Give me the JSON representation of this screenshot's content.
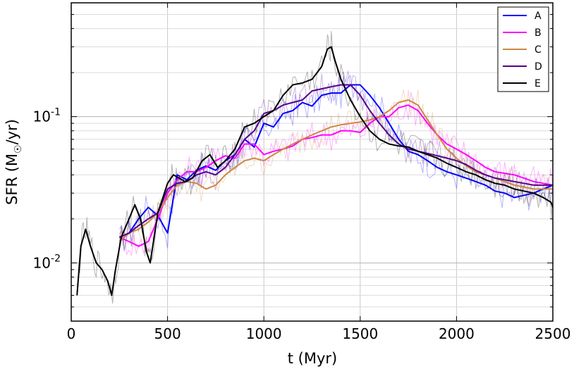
{
  "chart_data": {
    "type": "line",
    "title": "",
    "xlabel": "t (Myr)",
    "ylabel_main": "SFR (M",
    "ylabel_sub": "☉",
    "ylabel_tail": "/yr)",
    "xlim": [
      0,
      2500
    ],
    "ylim": [
      0.004,
      0.6
    ],
    "yscale": "log",
    "grid": true,
    "legend_position": "top-right",
    "x_ticks": [
      0,
      500,
      1000,
      1500,
      2000,
      2500
    ],
    "x_tick_labels": [
      "0",
      "500",
      "1000",
      "1500",
      "2000",
      "2500"
    ],
    "y_major_ticks": [
      0.01,
      0.1
    ],
    "y_tick_labels": [
      {
        "base": "10",
        "exp": "-2"
      },
      {
        "base": "10",
        "exp": "-1"
      }
    ],
    "y_minor_ticks": [
      0.005,
      0.006,
      0.007,
      0.008,
      0.009,
      0.02,
      0.03,
      0.04,
      0.05,
      0.06,
      0.07,
      0.08,
      0.09,
      0.2,
      0.3,
      0.4,
      0.5,
      0.6
    ],
    "series": [
      {
        "name": "A",
        "color": "#0000ff",
        "x": [
          250,
          300,
          350,
          400,
          450,
          500,
          550,
          600,
          650,
          700,
          750,
          800,
          850,
          900,
          950,
          1000,
          1050,
          1100,
          1150,
          1200,
          1250,
          1300,
          1350,
          1400,
          1450,
          1500,
          1550,
          1600,
          1650,
          1700,
          1750,
          1800,
          1850,
          1900,
          1950,
          2000,
          2050,
          2100,
          2150,
          2200,
          2250,
          2300,
          2350,
          2400,
          2450,
          2500
        ],
        "y": [
          0.014,
          0.016,
          0.02,
          0.024,
          0.021,
          0.016,
          0.04,
          0.037,
          0.043,
          0.046,
          0.043,
          0.05,
          0.055,
          0.07,
          0.062,
          0.09,
          0.085,
          0.105,
          0.11,
          0.125,
          0.118,
          0.14,
          0.145,
          0.145,
          0.165,
          0.165,
          0.14,
          0.115,
          0.09,
          0.07,
          0.058,
          0.055,
          0.05,
          0.045,
          0.042,
          0.04,
          0.038,
          0.036,
          0.034,
          0.031,
          0.03,
          0.028,
          0.029,
          0.03,
          0.032,
          0.034
        ]
      },
      {
        "name": "B",
        "color": "#ff00ff",
        "x": [
          250,
          300,
          350,
          400,
          450,
          500,
          550,
          600,
          650,
          700,
          750,
          800,
          850,
          900,
          950,
          1000,
          1050,
          1100,
          1150,
          1200,
          1250,
          1300,
          1350,
          1400,
          1450,
          1500,
          1550,
          1600,
          1650,
          1700,
          1750,
          1800,
          1850,
          1900,
          1950,
          2000,
          2050,
          2100,
          2150,
          2200,
          2250,
          2300,
          2350,
          2400,
          2450,
          2500
        ],
        "y": [
          0.015,
          0.014,
          0.013,
          0.014,
          0.02,
          0.03,
          0.037,
          0.042,
          0.042,
          0.045,
          0.05,
          0.054,
          0.052,
          0.065,
          0.065,
          0.055,
          0.058,
          0.06,
          0.063,
          0.07,
          0.072,
          0.075,
          0.075,
          0.08,
          0.08,
          0.078,
          0.09,
          0.1,
          0.1,
          0.115,
          0.12,
          0.11,
          0.09,
          0.075,
          0.065,
          0.06,
          0.055,
          0.05,
          0.045,
          0.042,
          0.041,
          0.04,
          0.038,
          0.036,
          0.035,
          0.034
        ]
      },
      {
        "name": "C",
        "color": "#cc8844",
        "x": [
          250,
          300,
          350,
          400,
          450,
          500,
          550,
          600,
          650,
          700,
          750,
          800,
          850,
          900,
          950,
          1000,
          1050,
          1100,
          1150,
          1200,
          1250,
          1300,
          1350,
          1400,
          1450,
          1500,
          1550,
          1600,
          1650,
          1700,
          1750,
          1800,
          1850,
          1900,
          1950,
          2000,
          2050,
          2100,
          2150,
          2200,
          2250,
          2300,
          2350,
          2400,
          2450,
          2500
        ],
        "y": [
          0.014,
          0.016,
          0.017,
          0.019,
          0.022,
          0.028,
          0.034,
          0.036,
          0.035,
          0.032,
          0.034,
          0.04,
          0.045,
          0.05,
          0.052,
          0.05,
          0.055,
          0.06,
          0.065,
          0.07,
          0.075,
          0.08,
          0.085,
          0.088,
          0.09,
          0.092,
          0.095,
          0.1,
          0.11,
          0.125,
          0.13,
          0.12,
          0.095,
          0.075,
          0.06,
          0.052,
          0.046,
          0.042,
          0.04,
          0.038,
          0.036,
          0.034,
          0.033,
          0.032,
          0.032,
          0.032
        ]
      },
      {
        "name": "D",
        "color": "#550088",
        "x": [
          250,
          300,
          350,
          400,
          450,
          500,
          550,
          600,
          650,
          700,
          750,
          800,
          850,
          900,
          950,
          1000,
          1050,
          1100,
          1150,
          1200,
          1250,
          1300,
          1350,
          1400,
          1450,
          1500,
          1550,
          1600,
          1650,
          1700,
          1750,
          1800,
          1850,
          1900,
          1950,
          2000,
          2050,
          2100,
          2150,
          2200,
          2250,
          2300,
          2350,
          2400,
          2450,
          2500
        ],
        "y": [
          0.015,
          0.016,
          0.018,
          0.02,
          0.022,
          0.032,
          0.035,
          0.036,
          0.04,
          0.042,
          0.04,
          0.045,
          0.055,
          0.07,
          0.08,
          0.105,
          0.11,
          0.12,
          0.125,
          0.13,
          0.15,
          0.155,
          0.16,
          0.165,
          0.165,
          0.14,
          0.11,
          0.09,
          0.075,
          0.065,
          0.06,
          0.058,
          0.056,
          0.054,
          0.052,
          0.05,
          0.047,
          0.043,
          0.04,
          0.038,
          0.037,
          0.036,
          0.035,
          0.034,
          0.034,
          0.034
        ]
      },
      {
        "name": "E",
        "color": "#000000",
        "x": [
          30,
          50,
          75,
          100,
          130,
          160,
          190,
          210,
          230,
          260,
          300,
          330,
          360,
          390,
          410,
          450,
          500,
          530,
          560,
          590,
          630,
          680,
          720,
          760,
          800,
          850,
          900,
          950,
          1000,
          1050,
          1100,
          1150,
          1200,
          1250,
          1300,
          1330,
          1350,
          1370,
          1400,
          1450,
          1500,
          1550,
          1600,
          1650,
          1700,
          1750,
          1800,
          1850,
          1900,
          1950,
          2000,
          2050,
          2100,
          2150,
          2200,
          2250,
          2300,
          2350,
          2400,
          2450,
          2490,
          2500
        ],
        "y": [
          0.006,
          0.013,
          0.017,
          0.013,
          0.01,
          0.009,
          0.0075,
          0.006,
          0.009,
          0.015,
          0.02,
          0.025,
          0.02,
          0.012,
          0.01,
          0.022,
          0.035,
          0.04,
          0.038,
          0.036,
          0.038,
          0.05,
          0.055,
          0.045,
          0.05,
          0.06,
          0.085,
          0.09,
          0.1,
          0.11,
          0.14,
          0.165,
          0.17,
          0.18,
          0.22,
          0.29,
          0.3,
          0.24,
          0.18,
          0.13,
          0.1,
          0.08,
          0.07,
          0.065,
          0.063,
          0.062,
          0.058,
          0.055,
          0.052,
          0.048,
          0.045,
          0.042,
          0.04,
          0.037,
          0.035,
          0.034,
          0.032,
          0.031,
          0.03,
          0.028,
          0.026,
          0.024
        ]
      }
    ]
  }
}
